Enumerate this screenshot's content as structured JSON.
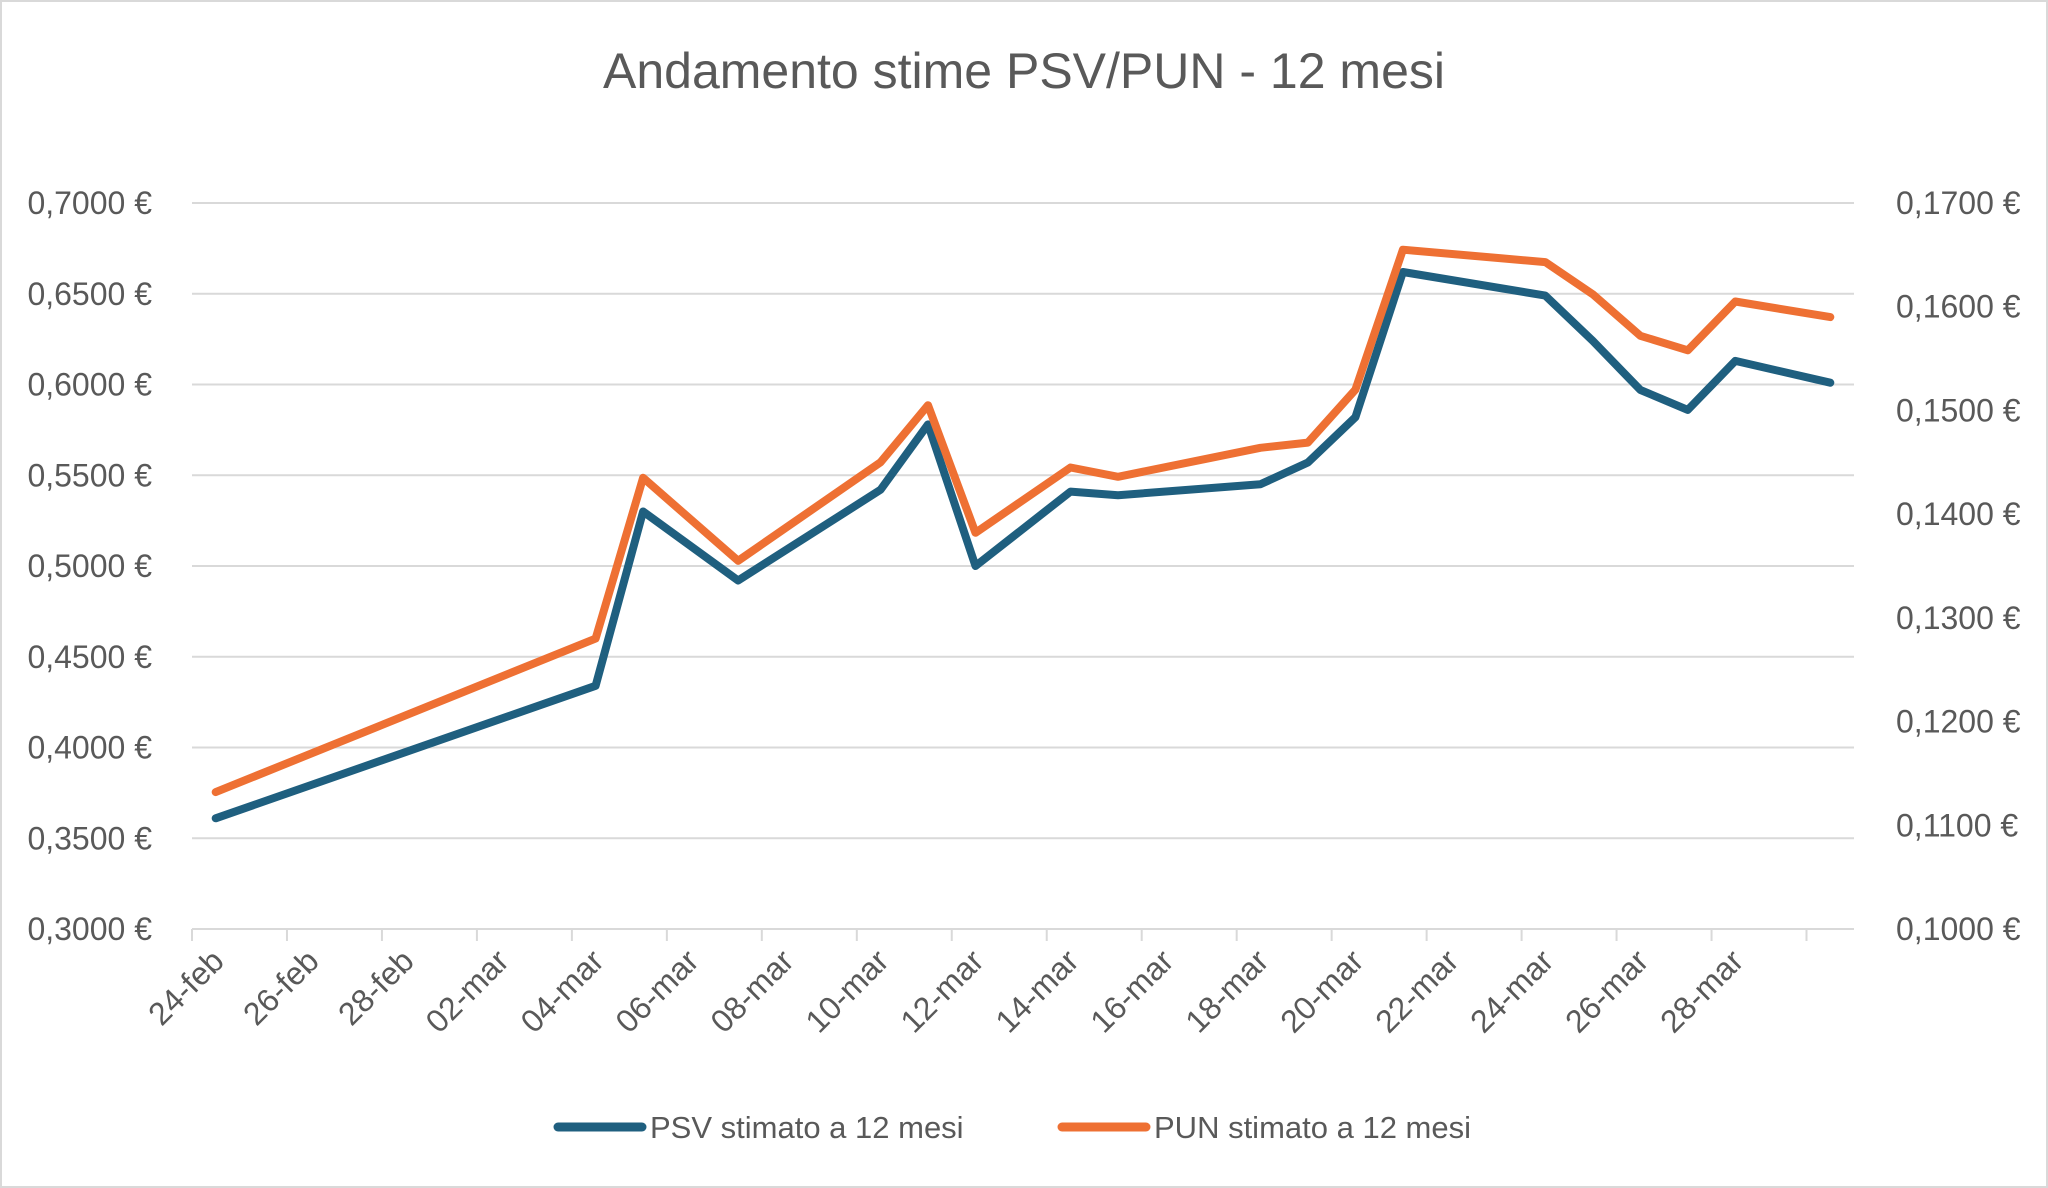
{
  "chart_data": {
    "type": "line",
    "title": "Andamento stime PSV/PUN - 12 mesi",
    "x_tick_labels": [
      "24-feb",
      "26-feb",
      "28-feb",
      "02-mar",
      "04-mar",
      "06-mar",
      "08-mar",
      "10-mar",
      "12-mar",
      "14-mar",
      "16-mar",
      "18-mar",
      "20-mar",
      "22-mar",
      "24-mar",
      "26-mar",
      "28-mar"
    ],
    "y_left": {
      "ylim": [
        0.3,
        0.7
      ],
      "tick_labels": [
        "0,3000 €",
        "0,3500 €",
        "0,4000 €",
        "0,4500 €",
        "0,5000 €",
        "0,5500 €",
        "0,6000 €",
        "0,6500 €",
        "0,7000 €"
      ]
    },
    "y_right": {
      "ylim": [
        0.1,
        0.17
      ],
      "tick_labels": [
        "0,1000 €",
        "0,1100 €",
        "0,1200 €",
        "0,1300 €",
        "0,1400 €",
        "0,1500 €",
        "0,1600 €",
        "0,1700 €"
      ]
    },
    "grid": true,
    "legend_position": "bottom",
    "series": [
      {
        "name": "PSV stimato a 12 mesi",
        "axis": "left",
        "color": "#1f5f7f",
        "points": [
          {
            "date": "24-feb",
            "y": 0.361
          },
          {
            "date": "03-mar",
            "y": 0.434
          },
          {
            "date": "04-mar",
            "y": 0.53
          },
          {
            "date": "06-mar",
            "y": 0.492
          },
          {
            "date": "09-mar",
            "y": 0.542
          },
          {
            "date": "10-mar",
            "y": 0.578
          },
          {
            "date": "11-mar",
            "y": 0.5
          },
          {
            "date": "13-mar",
            "y": 0.541
          },
          {
            "date": "14-mar",
            "y": 0.539
          },
          {
            "date": "17-mar",
            "y": 0.545
          },
          {
            "date": "18-mar",
            "y": 0.557
          },
          {
            "date": "19-mar",
            "y": 0.582
          },
          {
            "date": "20-mar",
            "y": 0.662
          },
          {
            "date": "23-mar",
            "y": 0.649
          },
          {
            "date": "24-mar",
            "y": 0.624
          },
          {
            "date": "25-mar",
            "y": 0.597
          },
          {
            "date": "26-mar",
            "y": 0.586
          },
          {
            "date": "27-mar",
            "y": 0.613
          },
          {
            "date": "29-mar",
            "y": 0.601
          }
        ]
      },
      {
        "name": "PUN stimato a 12 mesi",
        "axis": "right",
        "color": "#ee7033",
        "points": [
          {
            "date": "24-feb",
            "y": 0.1132
          },
          {
            "date": "03-mar",
            "y": 0.128
          },
          {
            "date": "04-mar",
            "y": 0.1435
          },
          {
            "date": "06-mar",
            "y": 0.1355
          },
          {
            "date": "09-mar",
            "y": 0.145
          },
          {
            "date": "10-mar",
            "y": 0.1505
          },
          {
            "date": "11-mar",
            "y": 0.1382
          },
          {
            "date": "13-mar",
            "y": 0.1445
          },
          {
            "date": "14-mar",
            "y": 0.1436
          },
          {
            "date": "17-mar",
            "y": 0.1464
          },
          {
            "date": "18-mar",
            "y": 0.1469
          },
          {
            "date": "19-mar",
            "y": 0.152
          },
          {
            "date": "20-mar",
            "y": 0.1655
          },
          {
            "date": "23-mar",
            "y": 0.1643
          },
          {
            "date": "24-mar",
            "y": 0.1612
          },
          {
            "date": "25-mar",
            "y": 0.1572
          },
          {
            "date": "26-mar",
            "y": 0.1558
          },
          {
            "date": "27-mar",
            "y": 0.1605
          },
          {
            "date": "29-mar",
            "y": 0.159
          }
        ]
      }
    ]
  }
}
